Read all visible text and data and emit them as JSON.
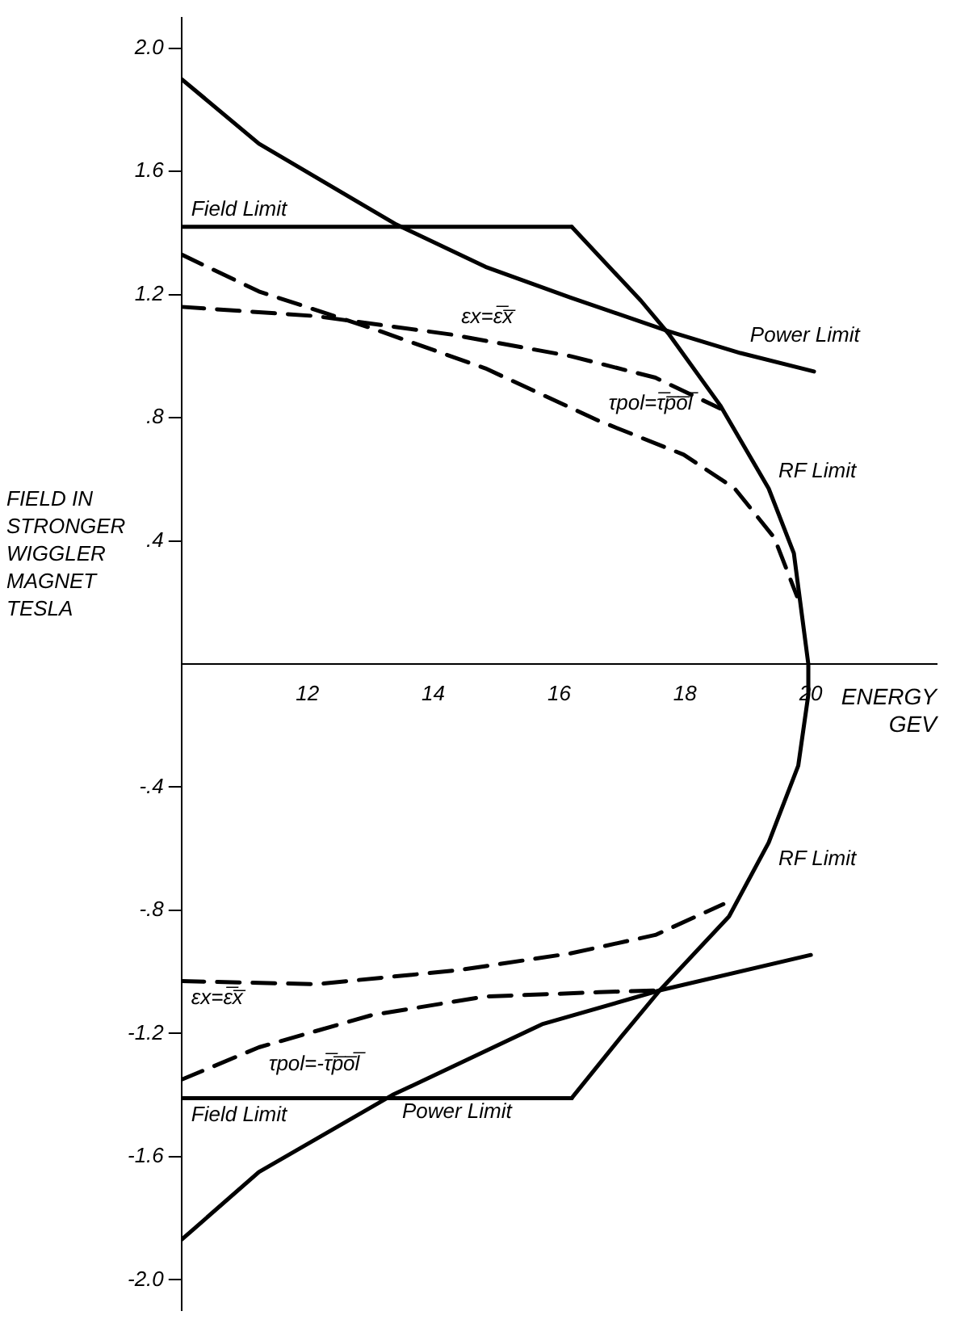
{
  "chart_data": {
    "type": "line",
    "xlabel": "ENERGY GEV",
    "ylabel": "FIELD IN STRONGER WIGGLER MAGNET TESLA",
    "xlim": [
      10,
      22
    ],
    "xticks": [
      12,
      14,
      16,
      18,
      20
    ],
    "ylim": [
      -2.1,
      2.1
    ],
    "yticks": [
      {
        "value": 2,
        "label": "2.0"
      },
      1.6,
      1.2,
      {
        "value": 0.8,
        "label": ".8"
      },
      {
        "value": 0.4,
        "label": ".4"
      },
      {
        "value": -0.4,
        "label": "-.4"
      },
      {
        "value": -0.8,
        "label": "-.8"
      },
      -1.2,
      -1.6,
      {
        "value": -2,
        "label": "-2.0"
      }
    ],
    "grid": false,
    "legend": false,
    "marker": "none",
    "series": [
      {
        "color": "#000000",
        "line_style": "solid",
        "x": [
          10,
          11.23,
          13.39,
          14.83,
          16.18,
          17.75,
          18.88,
          20.05
        ],
        "values": [
          1.9,
          1.69,
          1.43,
          1.29,
          1.19,
          1.08,
          1.01,
          0.95
        ]
      },
      {
        "color": "#000000",
        "line_style": "solid",
        "x": [
          10,
          11.23,
          13.35,
          15.73,
          17.6,
          20.0
        ],
        "values": [
          -1.87,
          -1.65,
          -1.4,
          -1.17,
          -1.06,
          -0.945
        ]
      },
      {
        "color": "#000000",
        "line_style": "solid",
        "x": [
          10,
          16.2
        ],
        "values": [
          1.42,
          1.42
        ]
      },
      {
        "color": "#000000",
        "line_style": "solid",
        "x": [
          10,
          16.2
        ],
        "values": [
          -1.41,
          -1.41
        ]
      },
      {
        "color": "#000000",
        "line_style": "solid",
        "x": [
          16.2,
          17.3,
          17.75,
          18.56,
          19.33,
          19.73,
          19.96,
          19.96,
          19.8,
          19.33,
          18.7,
          17.6,
          16.99,
          16.2
        ],
        "values": [
          1.42,
          1.18,
          1.07,
          0.84,
          0.57,
          0.36,
          0,
          -0.1,
          -0.33,
          -0.58,
          -0.82,
          -1.06,
          -1.21,
          -1.41
        ]
      },
      {
        "color": "#000000",
        "line_style": "dashed",
        "x": [
          10,
          12.13,
          14.29,
          16.18,
          17.53,
          18.56
        ],
        "values": [
          1.16,
          1.13,
          1.07,
          1.0,
          0.93,
          0.83
        ]
      },
      {
        "color": "#000000",
        "line_style": "dashed",
        "x": [
          10,
          11.23,
          13.03,
          14.83,
          16.63,
          17.98,
          18.79,
          19.42,
          19.78
        ],
        "values": [
          1.33,
          1.21,
          1.09,
          0.96,
          0.79,
          0.68,
          0.57,
          0.41,
          0.22
        ]
      },
      {
        "color": "#000000",
        "line_style": "dashed",
        "x": [
          10,
          12.13,
          14.38,
          16.18,
          17.53,
          18.61
        ],
        "values": [
          -1.03,
          -1.04,
          -0.995,
          -0.94,
          -0.88,
          -0.78
        ]
      },
      {
        "color": "#000000",
        "line_style": "dashed",
        "x": [
          10,
          11.23,
          13.03,
          14.83,
          16.63,
          17.6
        ],
        "values": [
          -1.35,
          -1.245,
          -1.14,
          -1.08,
          -1.066,
          -1.06
        ]
      }
    ],
    "annotations": [
      {
        "text": "Field Limit",
        "x": 10,
        "y": 1.42
      },
      {
        "text": "Power Limit",
        "x": 18.88,
        "y": 1.01
      },
      {
        "text": "εx=ε̅x̅",
        "x": 14.29,
        "y": 1.07
      },
      {
        "text": "τpol=τ̅p̅o̅l̅",
        "x": 16.63,
        "y": 0.79
      },
      {
        "text": "RF Limit",
        "x": 19.33,
        "y": 0.57
      },
      {
        "text": "εx=ε̅x̅",
        "x": 10,
        "y": -1.03
      },
      {
        "text": "τpol=-τ̅p̅o̅l̅",
        "x": 11.23,
        "y": -1.245
      },
      {
        "text": "Field Limit",
        "x": 10,
        "y": -1.41
      },
      {
        "text": "Power Limit",
        "x": 13.35,
        "y": -1.4
      },
      {
        "text": "RF Limit",
        "x": 19.33,
        "y": -0.58
      }
    ]
  }
}
